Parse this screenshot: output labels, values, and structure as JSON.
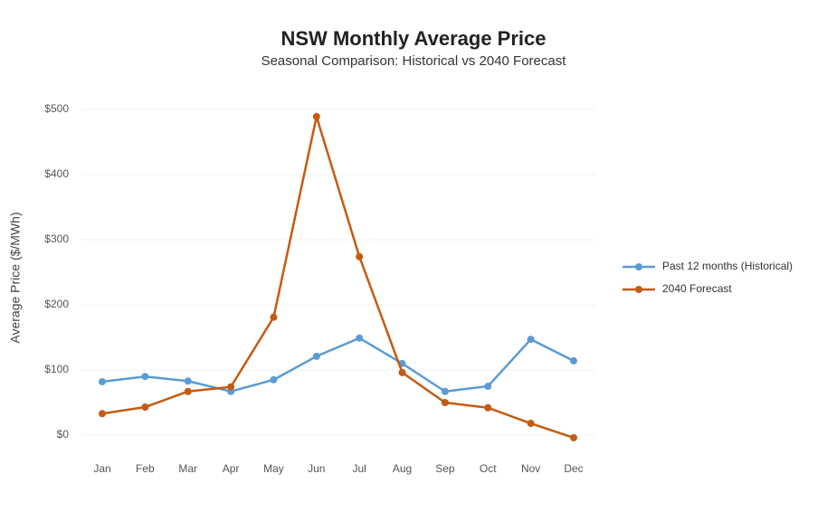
{
  "chart_data": {
    "type": "line",
    "title": "NSW Monthly Average Price",
    "subtitle": "Seasonal Comparison: Historical vs 2040 Forecast",
    "y_label": "Average Price ($/MWh)",
    "categories": [
      "Jan",
      "Feb",
      "Mar",
      "Apr",
      "May",
      "Jun",
      "Jul",
      "Aug",
      "Sep",
      "Oct",
      "Nov",
      "Dec"
    ],
    "series": [
      {
        "name": "Past 12 months (Historical)",
        "color": "#5b9bd5",
        "values": [
          82,
          90,
          83,
          67,
          85,
          121,
          149,
          110,
          67,
          75,
          147,
          114
        ]
      },
      {
        "name": "2040 Forecast",
        "color": "#c55a11",
        "values": [
          33,
          43,
          67,
          74,
          181,
          489,
          274,
          96,
          50,
          42,
          18,
          -4
        ]
      }
    ],
    "ylim": [
      -30,
      530
    ],
    "yticks": [
      {
        "value": 0,
        "label": "$0"
      },
      {
        "value": 100,
        "label": "$100"
      },
      {
        "value": 200,
        "label": "$200"
      },
      {
        "value": 300,
        "label": "$300"
      },
      {
        "value": 400,
        "label": "$400"
      },
      {
        "value": 500,
        "label": "$500"
      }
    ],
    "grid": true,
    "legend": "right"
  }
}
